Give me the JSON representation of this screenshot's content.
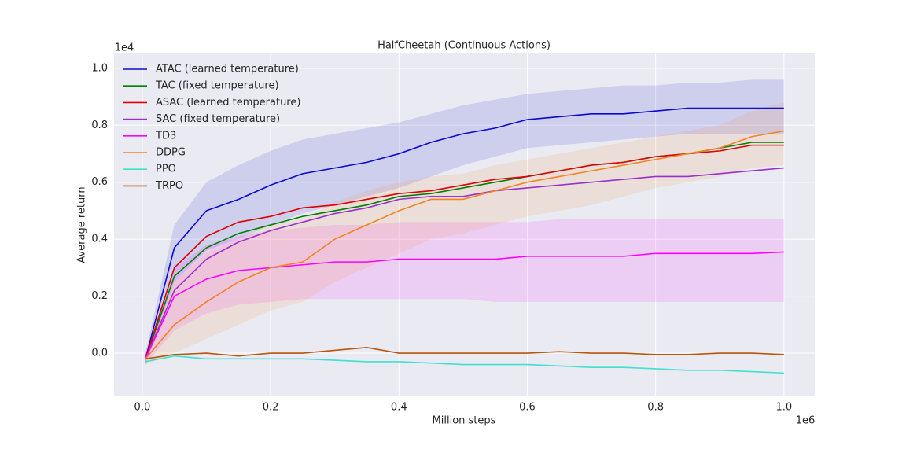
{
  "chart_data": {
    "type": "line",
    "title": "HalfCheetah (Continuous Actions)",
    "xlabel": "Million steps",
    "ylabel": "Average return",
    "x_offset_label": "1e6",
    "y_offset_label": "1e4",
    "xlim": [
      -0.044,
      1.048
    ],
    "ylim": [
      -0.149,
      1.052
    ],
    "xticks": [
      {
        "value": 0,
        "label": "0.0"
      },
      0.2,
      0.4,
      0.6,
      0.8,
      {
        "value": 1,
        "label": "1.0"
      }
    ],
    "yticks": [
      {
        "value": 0,
        "label": "0.0"
      },
      0.2,
      0.4,
      0.6,
      0.8,
      {
        "value": 1,
        "label": "1.0"
      }
    ],
    "grid": true,
    "legend": "upper-left",
    "background": "#eaeaf2",
    "x": [
      0.005,
      0.05,
      0.1,
      0.15,
      0.2,
      0.25,
      0.3,
      0.35,
      0.4,
      0.45,
      0.5,
      0.55,
      0.6,
      0.65,
      0.7,
      0.75,
      0.8,
      0.85,
      0.9,
      0.95,
      1.0
    ],
    "series": [
      {
        "name": "ATAC (learned temperature)",
        "color": "#0a0ad0",
        "values": [
          -0.02,
          0.37,
          0.5,
          0.54,
          0.59,
          0.63,
          0.65,
          0.67,
          0.7,
          0.74,
          0.77,
          0.79,
          0.82,
          0.83,
          0.84,
          0.84,
          0.85,
          0.86,
          0.86,
          0.86,
          0.86
        ],
        "upper": [
          0.0,
          0.45,
          0.6,
          0.66,
          0.71,
          0.75,
          0.77,
          0.79,
          0.81,
          0.84,
          0.87,
          0.89,
          0.91,
          0.92,
          0.93,
          0.94,
          0.94,
          0.95,
          0.95,
          0.96,
          0.96
        ],
        "lower": [
          -0.04,
          0.25,
          0.36,
          0.4,
          0.45,
          0.49,
          0.52,
          0.55,
          0.58,
          0.62,
          0.66,
          0.69,
          0.72,
          0.73,
          0.74,
          0.75,
          0.76,
          0.77,
          0.77,
          0.77,
          0.77
        ]
      },
      {
        "name": "TAC (fixed temperature)",
        "color": "#008000",
        "values": [
          -0.02,
          0.27,
          0.37,
          0.42,
          0.45,
          0.48,
          0.5,
          0.52,
          0.55,
          0.56,
          0.58,
          0.6,
          0.62,
          0.64,
          0.66,
          0.67,
          0.69,
          0.7,
          0.72,
          0.74,
          0.74
        ]
      },
      {
        "name": "ASAC (learned temperature)",
        "color": "#e00000",
        "values": [
          -0.02,
          0.3,
          0.41,
          0.46,
          0.48,
          0.51,
          0.52,
          0.54,
          0.56,
          0.57,
          0.59,
          0.61,
          0.62,
          0.64,
          0.66,
          0.67,
          0.69,
          0.7,
          0.71,
          0.73,
          0.73
        ]
      },
      {
        "name": "SAC (fixed temperature)",
        "color": "#9932cc",
        "values": [
          -0.02,
          0.22,
          0.33,
          0.39,
          0.43,
          0.46,
          0.49,
          0.51,
          0.54,
          0.55,
          0.55,
          0.57,
          0.58,
          0.59,
          0.6,
          0.61,
          0.62,
          0.62,
          0.63,
          0.64,
          0.65
        ]
      },
      {
        "name": "TD3",
        "color": "#ff00ff",
        "values": [
          -0.02,
          0.2,
          0.26,
          0.29,
          0.3,
          0.31,
          0.32,
          0.32,
          0.33,
          0.33,
          0.33,
          0.33,
          0.34,
          0.34,
          0.34,
          0.34,
          0.35,
          0.35,
          0.35,
          0.35,
          0.355
        ],
        "upper": [
          0.0,
          0.3,
          0.38,
          0.41,
          0.43,
          0.44,
          0.45,
          0.45,
          0.46,
          0.46,
          0.46,
          0.46,
          0.46,
          0.47,
          0.47,
          0.47,
          0.47,
          0.47,
          0.47,
          0.47,
          0.47
        ],
        "lower": [
          -0.04,
          0.08,
          0.14,
          0.17,
          0.18,
          0.19,
          0.19,
          0.19,
          0.19,
          0.19,
          0.19,
          0.18,
          0.18,
          0.18,
          0.18,
          0.18,
          0.18,
          0.18,
          0.18,
          0.18,
          0.18
        ]
      },
      {
        "name": "DDPG",
        "color": "#f5821f",
        "values": [
          -0.02,
          0.1,
          0.18,
          0.25,
          0.3,
          0.32,
          0.4,
          0.45,
          0.5,
          0.54,
          0.54,
          0.57,
          0.6,
          0.62,
          0.64,
          0.66,
          0.68,
          0.7,
          0.72,
          0.76,
          0.78
        ],
        "upper": [
          0.0,
          0.25,
          0.35,
          0.4,
          0.45,
          0.47,
          0.53,
          0.57,
          0.6,
          0.62,
          0.63,
          0.66,
          0.68,
          0.7,
          0.72,
          0.74,
          0.76,
          0.78,
          0.8,
          0.85,
          0.88
        ],
        "lower": [
          -0.04,
          0.0,
          0.05,
          0.1,
          0.15,
          0.18,
          0.25,
          0.3,
          0.35,
          0.4,
          0.42,
          0.45,
          0.48,
          0.5,
          0.52,
          0.55,
          0.58,
          0.6,
          0.62,
          0.65,
          0.66
        ]
      },
      {
        "name": "PPO",
        "color": "#40e0d0",
        "values": [
          -0.03,
          -0.01,
          -0.02,
          -0.02,
          -0.02,
          -0.02,
          -0.025,
          -0.03,
          -0.03,
          -0.035,
          -0.04,
          -0.04,
          -0.04,
          -0.045,
          -0.05,
          -0.05,
          -0.055,
          -0.06,
          -0.06,
          -0.065,
          -0.07
        ]
      },
      {
        "name": "TRPO",
        "color": "#b8560b",
        "values": [
          -0.02,
          -0.005,
          0.0,
          -0.01,
          0.0,
          0.0,
          0.01,
          0.02,
          0.0,
          0.0,
          0.0,
          0.0,
          0.0,
          0.005,
          0.0,
          0.0,
          -0.005,
          -0.005,
          0.0,
          0.0,
          -0.005
        ]
      }
    ]
  }
}
